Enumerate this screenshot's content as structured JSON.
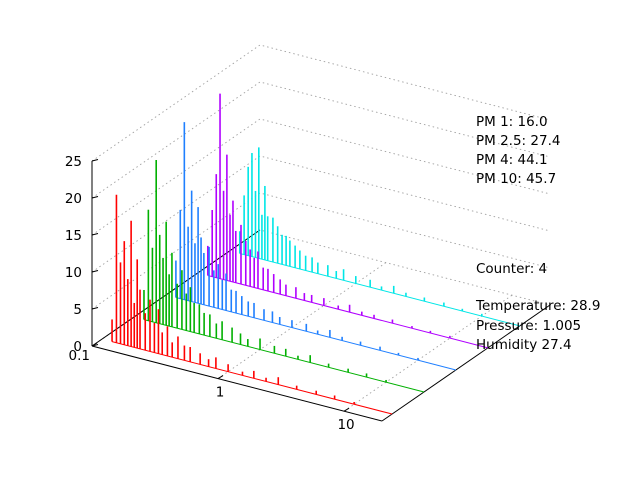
{
  "chart_data": {
    "type": "bar",
    "projection": "3d",
    "x_scale": "log",
    "x_ticks": [
      "0.1",
      "1",
      "10"
    ],
    "z_ticks": [
      "0",
      "5",
      "10",
      "15",
      "20",
      "25"
    ],
    "zlim": [
      0,
      25
    ],
    "xlabel": "",
    "ylabel": "",
    "zlabel": "",
    "series": [
      {
        "color": "#ff0000",
        "x": [
          0.12,
          0.13,
          0.14,
          0.15,
          0.16,
          0.17,
          0.18,
          0.19,
          0.2,
          0.22,
          0.24,
          0.26,
          0.28,
          0.3,
          0.33,
          0.36,
          0.4,
          0.45,
          0.5,
          0.6,
          0.7,
          0.8,
          1.0,
          1.3,
          1.6,
          2.0,
          2.5,
          3.5,
          5.0,
          7.0,
          10.0
        ],
        "values": [
          3,
          20,
          11,
          14,
          9,
          17,
          6,
          12,
          8,
          5,
          7,
          4,
          6,
          3,
          4,
          2,
          3,
          2,
          2,
          1.5,
          1,
          1.5,
          1,
          0.5,
          1,
          0.5,
          1,
          0.5,
          0.5,
          0.5,
          0.3
        ]
      },
      {
        "color": "#00b000",
        "x": [
          0.12,
          0.13,
          0.14,
          0.15,
          0.16,
          0.17,
          0.18,
          0.19,
          0.2,
          0.22,
          0.24,
          0.26,
          0.28,
          0.3,
          0.33,
          0.36,
          0.4,
          0.45,
          0.5,
          0.6,
          0.7,
          0.8,
          1.0,
          1.3,
          1.6,
          2.0,
          2.5,
          3.5,
          5.0,
          7.0,
          10.0
        ],
        "values": [
          4,
          15,
          10,
          22,
          12,
          9,
          14,
          7,
          10,
          6,
          8,
          5,
          6,
          4,
          4,
          3,
          3,
          2,
          2.5,
          2,
          1.5,
          1,
          1.5,
          1,
          1,
          0.5,
          1,
          0.5,
          0.5,
          0.5,
          0.3
        ]
      },
      {
        "color": "#1f7fff",
        "x": [
          0.12,
          0.13,
          0.14,
          0.15,
          0.16,
          0.17,
          0.18,
          0.19,
          0.2,
          0.22,
          0.24,
          0.26,
          0.28,
          0.3,
          0.33,
          0.36,
          0.4,
          0.45,
          0.5,
          0.6,
          0.7,
          0.8,
          1.0,
          1.3,
          1.6,
          2.0,
          2.5,
          3.5,
          5.0,
          7.0,
          10.0
        ],
        "values": [
          5,
          12,
          24,
          10,
          15,
          8,
          13,
          9,
          7,
          8,
          5,
          6,
          4,
          5,
          3,
          3,
          2.5,
          2,
          2,
          1.5,
          1.5,
          1,
          1,
          1,
          0.5,
          1,
          0.5,
          0.5,
          0.5,
          0.3,
          0.3
        ]
      },
      {
        "color": "#b000ff",
        "x": [
          0.12,
          0.13,
          0.14,
          0.15,
          0.16,
          0.17,
          0.18,
          0.19,
          0.2,
          0.22,
          0.24,
          0.26,
          0.28,
          0.3,
          0.33,
          0.36,
          0.4,
          0.45,
          0.5,
          0.6,
          0.7,
          0.8,
          1.0,
          1.3,
          1.6,
          2.0,
          2.5,
          3.5,
          5.0,
          7.0,
          10.0
        ],
        "values": [
          4,
          9,
          14,
          25,
          12,
          17,
          9,
          11,
          7,
          8,
          6,
          5,
          4,
          5,
          3,
          3,
          2.5,
          2,
          1.5,
          1.5,
          1,
          1,
          1,
          0.5,
          1,
          0.5,
          0.5,
          0.5,
          0.3,
          0.3,
          0.3
        ]
      },
      {
        "color": "#00e6e6",
        "x": [
          0.12,
          0.13,
          0.14,
          0.15,
          0.16,
          0.17,
          0.18,
          0.19,
          0.2,
          0.22,
          0.24,
          0.26,
          0.28,
          0.3,
          0.33,
          0.36,
          0.4,
          0.45,
          0.5,
          0.6,
          0.7,
          0.8,
          1.0,
          1.3,
          1.6,
          2.0,
          2.5,
          3.5,
          5.0,
          7.0,
          10.0
        ],
        "values": [
          3,
          8,
          12,
          14,
          9,
          15,
          6,
          10,
          6,
          6,
          5,
          4,
          4,
          3.5,
          3,
          2.5,
          2,
          2,
          1.5,
          1.5,
          1,
          1.5,
          1,
          1,
          0.5,
          1,
          0.5,
          0.5,
          0.5,
          0.3,
          0.3
        ]
      }
    ]
  },
  "annotations": {
    "pm1": "PM 1: 16.0",
    "pm25": "PM 2.5: 27.4",
    "pm4": "PM 4: 44.1",
    "pm10": "PM 10: 45.7",
    "counter": "Counter: 4",
    "temperature": "Temperature: 28.9",
    "pressure": "Pressure: 1.005",
    "humidity": "Humidity 27.4"
  }
}
